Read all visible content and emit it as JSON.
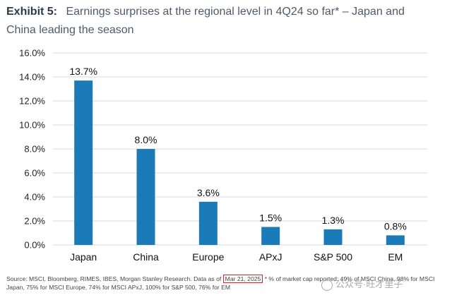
{
  "header": {
    "exhibit_label": "Exhibit 5:",
    "title": "Earnings surprises at the regional level in 4Q24 so far* – Japan and China leading the season"
  },
  "chart_data": {
    "type": "bar",
    "categories": [
      "Japan",
      "China",
      "Europe",
      "APxJ",
      "S&P 500",
      "EM"
    ],
    "values": [
      13.7,
      8.0,
      3.6,
      1.5,
      1.3,
      0.8
    ],
    "data_labels": [
      "13.7%",
      "8.0%",
      "3.6%",
      "1.5%",
      "1.3%",
      "0.8%"
    ],
    "ylim": [
      0,
      16
    ],
    "yticks": [
      "0.0%",
      "2.0%",
      "4.0%",
      "6.0%",
      "8.0%",
      "10.0%",
      "12.0%",
      "14.0%",
      "16.0%"
    ],
    "title": "",
    "xlabel": "",
    "ylabel": "",
    "grid": true,
    "bar_color": "#1b7bb8",
    "grid_color": "#d9d9d9"
  },
  "source": {
    "prefix": "Source: MSCI, Bloomberg, RIMES, IBES, Morgan Stanley Research. Data as of",
    "date": "Mar 21, 2025",
    "suffix": "* % of market cap reported: 49% of MSCI China, 98% for MSCI Japan, 75% for MSCI Europe, 74% for MSCI APxJ, 100% for S&P 500, 76% for EM"
  },
  "watermark": "公众号·旺才里子"
}
